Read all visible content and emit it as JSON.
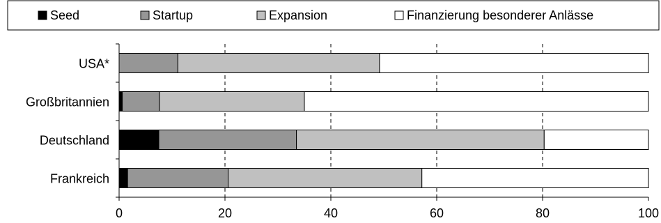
{
  "chart_data": {
    "type": "bar",
    "orientation": "horizontal",
    "stacked": true,
    "categories": [
      "USA*",
      "Großbritannien",
      "Deutschland",
      "Frankreich"
    ],
    "series": [
      {
        "name": "Seed",
        "color": "#000000",
        "values": [
          0,
          0.6,
          7.5,
          1.6
        ]
      },
      {
        "name": "Startup",
        "color": "#969696",
        "values": [
          11.1,
          7.0,
          26.0,
          19.0
        ]
      },
      {
        "name": "Expansion",
        "color": "#c0c0c0",
        "values": [
          38.1,
          27.4,
          46.8,
          36.6
        ]
      },
      {
        "name": "Finanzierung besonderer Anlässe",
        "color": "#ffffff",
        "values": [
          50.8,
          65.0,
          19.7,
          42.8
        ]
      }
    ],
    "xlim": [
      0,
      100
    ],
    "xticks": [
      0,
      20,
      40,
      60,
      80,
      100
    ],
    "grid": "vertical dashed",
    "legend": "top"
  }
}
